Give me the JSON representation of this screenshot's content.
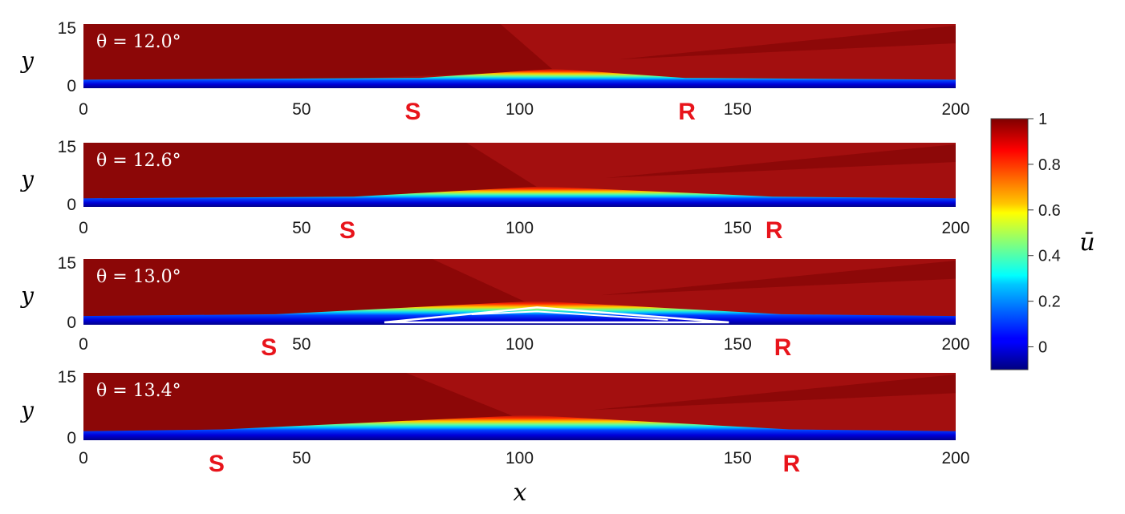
{
  "chart_data": {
    "type": "heatmap",
    "xlabel": "x",
    "ylabel": "y",
    "xlim": [
      0,
      200
    ],
    "ylim": [
      0,
      15
    ],
    "x_ticks": [
      "0",
      "50",
      "100",
      "150",
      "200"
    ],
    "y_ticks": [
      "0",
      "15"
    ],
    "colorbar": {
      "label": "ū",
      "range": [
        -0.1,
        1.0
      ],
      "ticks": [
        "1",
        "0.8",
        "0.6",
        "0.4",
        "0.2",
        "0"
      ],
      "colormap": "jet"
    },
    "panels": [
      {
        "label": "θ = 12.0°",
        "separation_x": 77,
        "reattachment_x": 138,
        "peak_x": 108,
        "separation_marker": "S",
        "reattachment_marker": "R",
        "recirculation": false
      },
      {
        "label": "θ = 12.6°",
        "separation_x": 62,
        "reattachment_x": 158,
        "peak_x": 105,
        "separation_marker": "S",
        "reattachment_marker": "R",
        "recirculation": false
      },
      {
        "label": "θ = 13.0°",
        "separation_x": 44,
        "reattachment_x": 160,
        "peak_x": 104,
        "separation_marker": "S",
        "reattachment_marker": "R",
        "recirculation": true
      },
      {
        "label": "θ = 13.4°",
        "separation_x": 32,
        "reattachment_x": 162,
        "peak_x": 102,
        "separation_marker": "S",
        "reattachment_marker": "R",
        "recirculation": false
      }
    ]
  },
  "colors": {
    "outer_flow": "#a30f0f",
    "dark_band": "#8a0707",
    "marker": "#e8141b"
  }
}
